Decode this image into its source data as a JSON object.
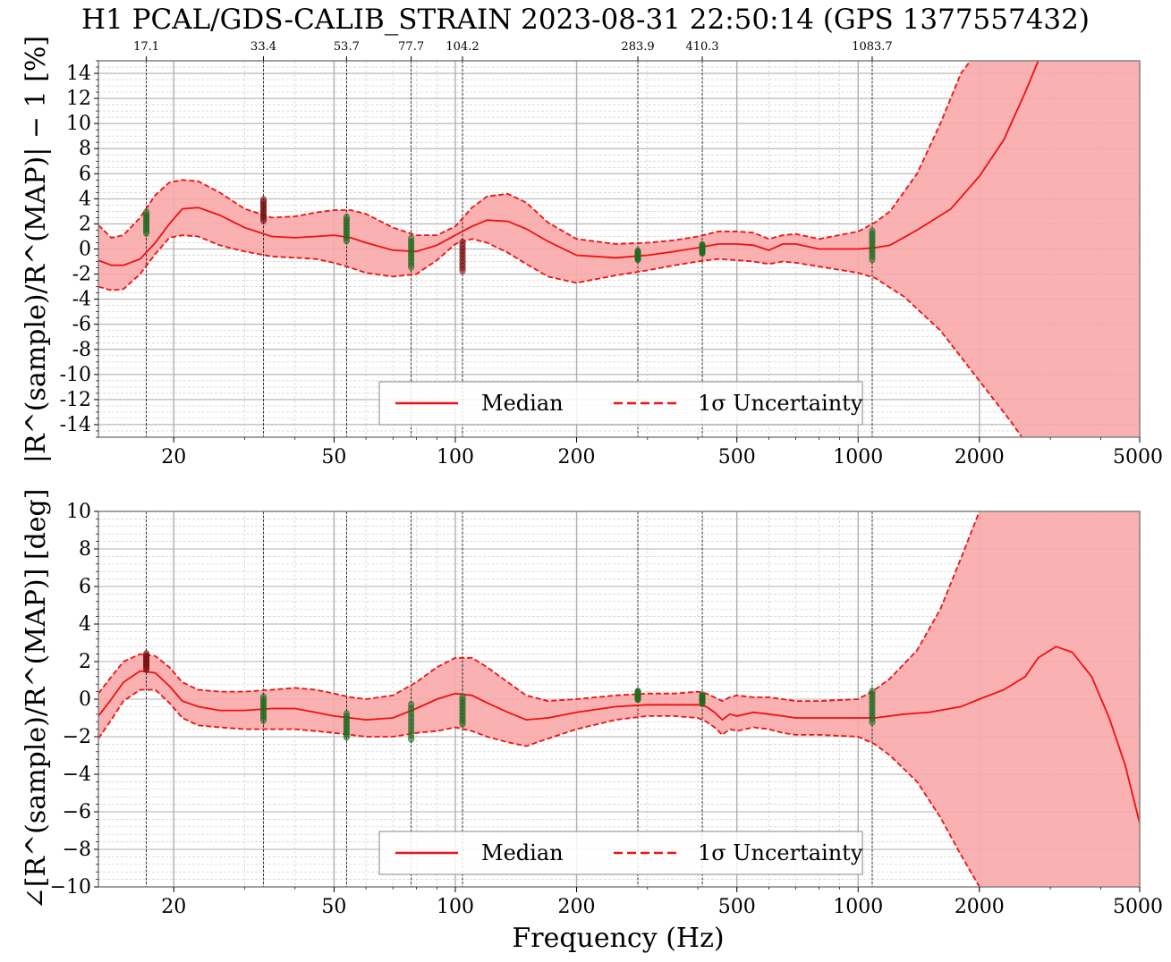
{
  "figure": {
    "title": "H1 PCAL/GDS-CALIB_STRAIN 2023-08-31 22:50:14 (GPS 1377557432)",
    "xlabel": "Frequency (Hz)"
  },
  "colors": {
    "band_fill": "#f9a9a9",
    "median": "#ee1111",
    "uncertainty": "#ee1111",
    "meas_good": "#1f6b1f",
    "meas_bad": "#7a1010",
    "grid_major": "#b0b0b0",
    "grid_minor": "#cfcfcf"
  },
  "chart_data": [
    {
      "type": "line",
      "panel": "magnitude",
      "ylabel": "|R^(sample)/R^(MAP)| − 1 [%]",
      "xscale": "log",
      "xlim": [
        13,
        5000
      ],
      "ylim": [
        -15,
        15
      ],
      "xticks": [
        20,
        50,
        100,
        200,
        500,
        1000,
        2000,
        5000
      ],
      "xtick_labels": [
        "20",
        "50",
        "100",
        "200",
        "500",
        "1000",
        "2000",
        "5000"
      ],
      "yticks": [
        -14,
        -12,
        -10,
        -8,
        -6,
        -4,
        -2,
        0,
        2,
        4,
        6,
        8,
        10,
        12,
        14
      ],
      "ytick_labels": [
        "-14",
        "-12",
        "-10",
        "-8",
        "-6",
        "-4",
        "-2",
        "0",
        "2",
        "4",
        "6",
        "8",
        "10",
        "12",
        "14"
      ],
      "grid": true,
      "legend_position": "bottom-center",
      "calibration_lines": [
        17.1,
        33.4,
        53.7,
        77.7,
        104.2,
        283.9,
        410.3,
        1083.7
      ],
      "calibration_line_labels": [
        "17.1",
        "33.4",
        "53.7",
        "77.7",
        "104.2",
        "283.9",
        "410.3",
        "1083.7"
      ],
      "series": [
        {
          "name": "Median",
          "style": "solid",
          "x": [
            13,
            14,
            15,
            16.5,
            18,
            19.5,
            21,
            23,
            26,
            30,
            35,
            40,
            45,
            50,
            55,
            60,
            70,
            80,
            90,
            100,
            110,
            120,
            135,
            150,
            170,
            200,
            250,
            300,
            350,
            400,
            450,
            500,
            550,
            600,
            650,
            700,
            800,
            1000,
            1100,
            1200,
            1400,
            1700,
            2000,
            2300,
            2600,
            2800
          ],
          "y": [
            -0.9,
            -1.3,
            -1.3,
            -0.8,
            0.5,
            2.0,
            3.2,
            3.3,
            2.7,
            1.7,
            1.0,
            0.9,
            1.0,
            1.1,
            0.9,
            0.5,
            -0.1,
            -0.2,
            0.3,
            1.1,
            1.8,
            2.3,
            2.2,
            1.6,
            0.6,
            -0.5,
            -0.7,
            -0.5,
            -0.2,
            0.1,
            0.4,
            0.4,
            0.3,
            -0.1,
            0.4,
            0.4,
            0.0,
            0.0,
            0.1,
            0.3,
            1.5,
            3.2,
            5.8,
            8.7,
            12.5,
            15.0
          ]
        },
        {
          "name": "1σ Uncertainty",
          "style": "dashed",
          "bound": "upper",
          "x": [
            13,
            14,
            15,
            16.5,
            18,
            19.5,
            21,
            23,
            26,
            30,
            35,
            40,
            45,
            50,
            55,
            60,
            70,
            80,
            90,
            100,
            110,
            120,
            135,
            150,
            170,
            200,
            250,
            300,
            350,
            400,
            450,
            500,
            550,
            600,
            650,
            700,
            800,
            1000,
            1100,
            1200,
            1400,
            1600,
            1800,
            1900
          ],
          "y": [
            1.9,
            0.9,
            1.1,
            2.5,
            4.3,
            5.3,
            5.5,
            5.4,
            4.5,
            3.2,
            2.5,
            2.6,
            2.9,
            3.1,
            3.1,
            2.8,
            1.7,
            1.1,
            1.1,
            1.8,
            3.3,
            4.2,
            4.4,
            3.7,
            2.1,
            0.8,
            0.4,
            0.5,
            0.7,
            1.0,
            1.4,
            1.4,
            1.3,
            0.8,
            1.1,
            1.2,
            0.8,
            1.4,
            2.1,
            3.0,
            6.0,
            10.0,
            14.0,
            15.0
          ]
        },
        {
          "name": "1σ Uncertainty",
          "style": "dashed",
          "bound": "lower",
          "x": [
            13,
            14,
            15,
            16.5,
            18,
            19.5,
            21,
            23,
            26,
            30,
            35,
            40,
            45,
            50,
            55,
            60,
            70,
            80,
            90,
            100,
            110,
            120,
            135,
            150,
            170,
            200,
            250,
            300,
            350,
            400,
            450,
            500,
            550,
            600,
            650,
            700,
            800,
            1000,
            1100,
            1300,
            1600,
            2000,
            2400,
            2550
          ],
          "y": [
            -3.0,
            -3.3,
            -3.2,
            -2.0,
            -0.4,
            0.9,
            1.1,
            1.0,
            0.3,
            -0.2,
            -0.6,
            -0.7,
            -0.8,
            -1.1,
            -1.5,
            -1.9,
            -2.2,
            -2.0,
            -0.9,
            0.4,
            0.8,
            0.5,
            -0.3,
            -1.2,
            -2.2,
            -2.7,
            -2.1,
            -1.7,
            -1.3,
            -1.0,
            -0.8,
            -0.9,
            -1.0,
            -1.2,
            -1.0,
            -1.1,
            -1.4,
            -1.9,
            -2.3,
            -3.8,
            -6.5,
            -10.5,
            -13.8,
            -15.0
          ]
        }
      ],
      "measurements": [
        {
          "x": 17.1,
          "y": 2.1,
          "yerr": 0.8,
          "status": "good"
        },
        {
          "x": 33.4,
          "y": 3.1,
          "yerr": 0.8,
          "status": "bad"
        },
        {
          "x": 53.7,
          "y": 1.6,
          "yerr": 0.9,
          "status": "good"
        },
        {
          "x": 77.7,
          "y": -0.3,
          "yerr": 1.1,
          "status": "good"
        },
        {
          "x": 104.2,
          "y": -0.6,
          "yerr": 1.1,
          "status": "bad"
        },
        {
          "x": 283.9,
          "y": -0.5,
          "yerr": 0.3,
          "status": "good"
        },
        {
          "x": 410.3,
          "y": 0.0,
          "yerr": 0.3,
          "status": "good"
        },
        {
          "x": 1083.7,
          "y": 0.3,
          "yerr": 1.1,
          "status": "good"
        }
      ]
    },
    {
      "type": "line",
      "panel": "phase",
      "ylabel": "∠[R^(sample)/R^(MAP)] [deg]",
      "xlabel": "Frequency (Hz)",
      "xscale": "log",
      "xlim": [
        13,
        5000
      ],
      "ylim": [
        -10,
        10
      ],
      "xticks": [
        20,
        50,
        100,
        200,
        500,
        1000,
        2000,
        5000
      ],
      "xtick_labels": [
        "20",
        "50",
        "100",
        "200",
        "500",
        "1000",
        "2000",
        "5000"
      ],
      "yticks": [
        -10,
        -8,
        -6,
        -4,
        -2,
        0,
        2,
        4,
        6,
        8,
        10
      ],
      "ytick_labels": [
        "−10",
        "−8",
        "−6",
        "−4",
        "−2",
        "0",
        "2",
        "4",
        "6",
        "8",
        "10"
      ],
      "grid": true,
      "legend_position": "bottom-center",
      "calibration_lines": [
        17.1,
        33.4,
        53.7,
        77.7,
        104.2,
        283.9,
        410.3,
        1083.7
      ],
      "series": [
        {
          "name": "Median",
          "style": "solid",
          "x": [
            13,
            14,
            15,
            16.5,
            18,
            19.5,
            21,
            23,
            26,
            30,
            35,
            40,
            45,
            50,
            55,
            60,
            70,
            80,
            90,
            100,
            110,
            120,
            135,
            150,
            170,
            200,
            250,
            300,
            350,
            400,
            420,
            440,
            460,
            480,
            500,
            550,
            600,
            650,
            700,
            800,
            1000,
            1100,
            1200,
            1300,
            1500,
            1800,
            2000,
            2300,
            2600,
            2800,
            3100,
            3400,
            3800,
            4200,
            4600,
            5000
          ],
          "y": [
            -0.9,
            0.0,
            0.9,
            1.5,
            1.4,
            0.7,
            -0.1,
            -0.4,
            -0.6,
            -0.6,
            -0.5,
            -0.5,
            -0.7,
            -0.9,
            -1.0,
            -1.1,
            -1.0,
            -0.5,
            0.0,
            0.3,
            0.2,
            -0.2,
            -0.7,
            -1.1,
            -1.0,
            -0.7,
            -0.4,
            -0.3,
            -0.3,
            -0.3,
            -0.4,
            -0.7,
            -1.1,
            -0.8,
            -0.9,
            -0.7,
            -0.8,
            -0.9,
            -1.0,
            -1.0,
            -1.0,
            -1.0,
            -0.9,
            -0.8,
            -0.7,
            -0.4,
            0.0,
            0.5,
            1.2,
            2.2,
            2.8,
            2.5,
            1.2,
            -1.0,
            -3.5,
            -6.6
          ]
        },
        {
          "name": "1σ Uncertainty",
          "style": "dashed",
          "bound": "upper",
          "x": [
            13,
            14,
            15,
            16.5,
            18,
            19.5,
            21,
            23,
            26,
            30,
            35,
            40,
            45,
            50,
            55,
            60,
            70,
            80,
            90,
            100,
            110,
            120,
            135,
            150,
            170,
            200,
            250,
            300,
            350,
            400,
            420,
            440,
            460,
            480,
            500,
            550,
            600,
            650,
            700,
            800,
            1000,
            1100,
            1200,
            1400,
            1600,
            1800,
            2000
          ],
          "y": [
            0.3,
            1.2,
            2.0,
            2.4,
            2.3,
            1.7,
            0.9,
            0.5,
            0.4,
            0.4,
            0.5,
            0.6,
            0.5,
            0.3,
            0.1,
            0.0,
            0.2,
            0.9,
            1.7,
            2.2,
            2.2,
            1.7,
            0.9,
            0.2,
            -0.1,
            0.0,
            0.2,
            0.3,
            0.3,
            0.4,
            0.3,
            0.1,
            -0.1,
            0.1,
            0.2,
            0.1,
            0.1,
            0.0,
            -0.1,
            -0.1,
            0.0,
            0.5,
            1.1,
            2.6,
            4.8,
            7.5,
            10.0
          ]
        },
        {
          "name": "1σ Uncertainty",
          "style": "dashed",
          "bound": "lower",
          "x": [
            13,
            14,
            15,
            16.5,
            18,
            19.5,
            21,
            23,
            26,
            30,
            35,
            40,
            45,
            50,
            55,
            60,
            70,
            80,
            90,
            100,
            110,
            120,
            135,
            150,
            170,
            200,
            250,
            300,
            350,
            400,
            420,
            440,
            460,
            480,
            500,
            550,
            600,
            650,
            700,
            800,
            1000,
            1100,
            1200,
            1400,
            1600,
            1800,
            2000
          ],
          "y": [
            -2.1,
            -1.1,
            -0.1,
            0.5,
            0.5,
            -0.2,
            -1.0,
            -1.4,
            -1.5,
            -1.6,
            -1.6,
            -1.6,
            -1.7,
            -1.8,
            -1.9,
            -2.0,
            -2.0,
            -1.8,
            -1.7,
            -1.5,
            -1.7,
            -2.0,
            -2.3,
            -2.5,
            -2.1,
            -1.6,
            -1.1,
            -0.9,
            -0.9,
            -1.0,
            -1.2,
            -1.5,
            -1.9,
            -1.6,
            -1.7,
            -1.5,
            -1.6,
            -1.8,
            -1.9,
            -1.9,
            -2.0,
            -2.4,
            -3.0,
            -4.4,
            -6.3,
            -8.3,
            -10.0
          ]
        }
      ],
      "measurements": [
        {
          "x": 17.1,
          "y": 2.0,
          "yerr": 0.4,
          "status": "bad"
        },
        {
          "x": 33.4,
          "y": -0.5,
          "yerr": 0.6,
          "status": "good"
        },
        {
          "x": 53.7,
          "y": -1.4,
          "yerr": 0.6,
          "status": "good"
        },
        {
          "x": 77.7,
          "y": -1.2,
          "yerr": 0.9,
          "status": "good"
        },
        {
          "x": 104.2,
          "y": -0.6,
          "yerr": 0.7,
          "status": "good"
        },
        {
          "x": 283.9,
          "y": 0.2,
          "yerr": 0.2,
          "status": "good"
        },
        {
          "x": 410.3,
          "y": 0.0,
          "yerr": 0.2,
          "status": "good"
        },
        {
          "x": 1083.7,
          "y": -0.4,
          "yerr": 0.8,
          "status": "good"
        }
      ]
    }
  ],
  "legend": {
    "median_label": "Median",
    "uncertainty_label": "1σ Uncertainty"
  }
}
